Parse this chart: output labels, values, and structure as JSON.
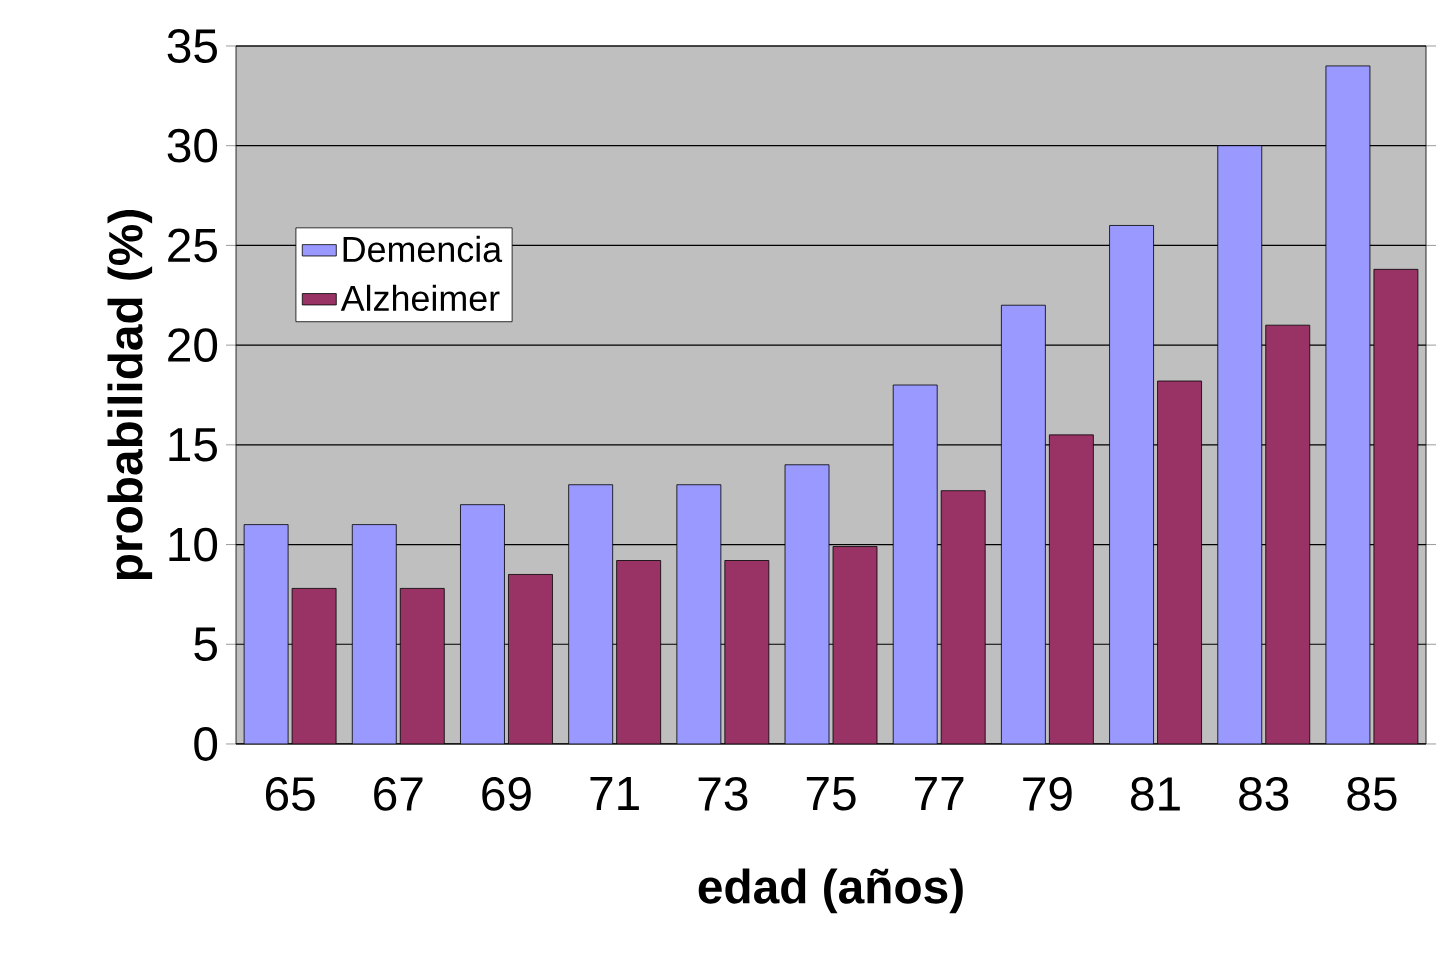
{
  "chart_data": {
    "type": "bar",
    "xlabel": "edad (años)",
    "ylabel": "probabilidad (%)",
    "categories": [
      "65",
      "67",
      "69",
      "71",
      "73",
      "75",
      "77",
      "79",
      "81",
      "83",
      "85"
    ],
    "series": [
      {
        "name": "Demencia",
        "color": "#9999ff",
        "values": [
          11,
          11,
          12,
          13,
          13,
          14,
          18,
          22,
          26,
          30,
          34
        ]
      },
      {
        "name": "Alzheimer",
        "color": "#993366",
        "values": [
          7.8,
          7.8,
          8.5,
          9.2,
          9.2,
          9.9,
          12.7,
          15.5,
          18.2,
          21,
          23.8
        ]
      }
    ],
    "ylim": [
      0,
      35
    ],
    "yticks": [
      0,
      5,
      10,
      15,
      20,
      25,
      30,
      35
    ],
    "grid": "y",
    "legend": "top left"
  }
}
